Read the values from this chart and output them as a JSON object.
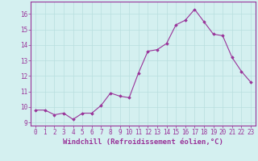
{
  "x": [
    0,
    1,
    2,
    3,
    4,
    5,
    6,
    7,
    8,
    9,
    10,
    11,
    12,
    13,
    14,
    15,
    16,
    17,
    18,
    19,
    20,
    21,
    22,
    23
  ],
  "y": [
    9.8,
    9.8,
    9.5,
    9.6,
    9.2,
    9.6,
    9.6,
    10.1,
    10.9,
    10.7,
    10.6,
    12.2,
    13.6,
    13.7,
    14.1,
    15.3,
    15.6,
    16.3,
    15.5,
    14.7,
    14.6,
    13.2,
    12.3,
    11.6
  ],
  "line_color": "#993399",
  "marker": "D",
  "marker_size": 1.8,
  "linewidth": 0.8,
  "xlabel": "Windchill (Refroidissement éolien,°C)",
  "xlabel_fontsize": 6.5,
  "xlim": [
    -0.5,
    23.5
  ],
  "ylim": [
    8.8,
    16.8
  ],
  "yticks": [
    9,
    10,
    11,
    12,
    13,
    14,
    15,
    16
  ],
  "xticks": [
    0,
    1,
    2,
    3,
    4,
    5,
    6,
    7,
    8,
    9,
    10,
    11,
    12,
    13,
    14,
    15,
    16,
    17,
    18,
    19,
    20,
    21,
    22,
    23
  ],
  "tick_fontsize": 5.5,
  "background_color": "#d4f0f0",
  "grid_color": "#b8dede",
  "border_color": "#993399"
}
